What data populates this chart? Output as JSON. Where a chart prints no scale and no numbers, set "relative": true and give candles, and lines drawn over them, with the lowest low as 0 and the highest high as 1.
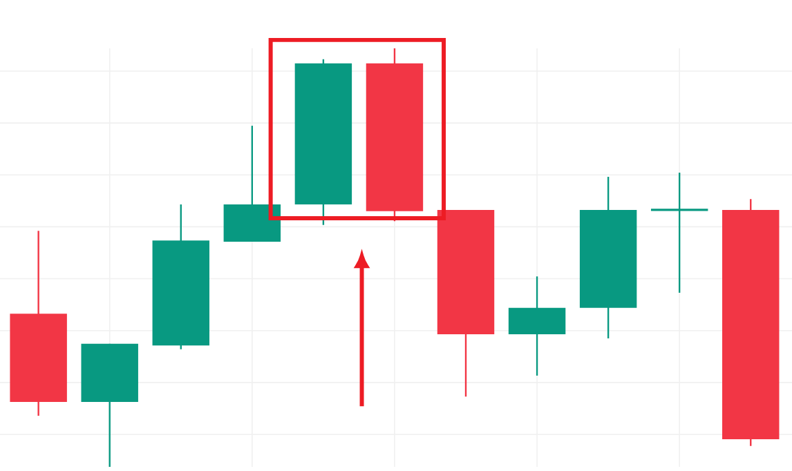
{
  "chart_data": {
    "type": "candlestick",
    "relative": true,
    "grid": true,
    "categories": [
      null,
      null,
      null,
      null,
      null,
      null,
      null,
      null,
      null,
      null,
      null
    ],
    "ohlc": [
      [
        0.366,
        0.564,
        0.122,
        0.155
      ],
      [
        0.155,
        0.294,
        0,
        0.294
      ],
      [
        0.29,
        0.627,
        0.281,
        0.541
      ],
      [
        0.538,
        0.815,
        0.538,
        0.627
      ],
      [
        0.627,
        0.974,
        0.578,
        0.964
      ],
      [
        0.964,
        1,
        0.587,
        0.611
      ],
      [
        0.614,
        0.614,
        0.168,
        0.317
      ],
      [
        0.317,
        0.455,
        0.218,
        0.38
      ],
      [
        0.38,
        0.693,
        0.307,
        0.614
      ],
      [
        0.614,
        0.703,
        0.416,
        0.614
      ],
      [
        0.614,
        0.64,
        0.05,
        0.066
      ]
    ],
    "colors": [
      "#f23645",
      "#089981",
      "#089981",
      "#089981",
      "#089981",
      "#f23645",
      "#f23645",
      "#089981",
      "#089981",
      "#089981",
      "#f23645"
    ]
  }
}
